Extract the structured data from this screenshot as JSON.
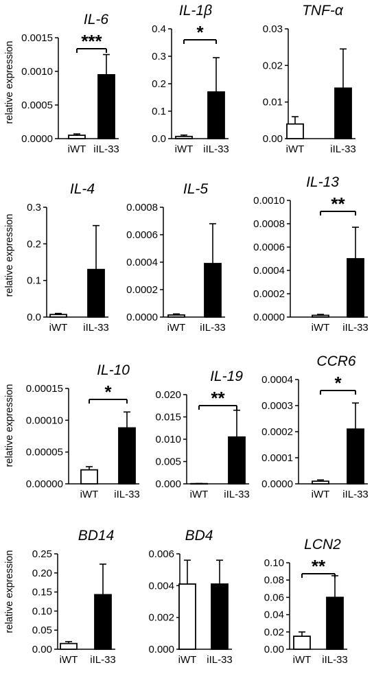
{
  "y_axis_label": "relative expression",
  "chart_data": [
    {
      "type": "bar",
      "title": "IL-6",
      "categories": [
        "iWT",
        "iIL-33"
      ],
      "values": [
        5e-05,
        0.00095
      ],
      "errors": [
        2e-05,
        0.0003
      ],
      "ylim": [
        0,
        0.0015
      ],
      "ticks": [
        "0.0000",
        "0.0005",
        "0.0010",
        "0.0015"
      ],
      "significance": "***",
      "ylabel": "relative expression"
    },
    {
      "type": "bar",
      "title": "IL-1β",
      "categories": [
        "iWT",
        "iIL-33"
      ],
      "values": [
        0.008,
        0.17
      ],
      "errors": [
        0.005,
        0.125
      ],
      "ylim": [
        0,
        0.4
      ],
      "ticks": [
        "0.0",
        "0.1",
        "0.2",
        "0.3",
        "0.4"
      ],
      "significance": "*"
    },
    {
      "type": "bar",
      "title": "TNF-α",
      "categories": [
        "iWT",
        "iIL-33"
      ],
      "values": [
        0.004,
        0.0138
      ],
      "errors": [
        0.002,
        0.0107
      ],
      "ylim": [
        0,
        0.03
      ],
      "ticks": [
        "0.00",
        "0.01",
        "0.02",
        "0.03"
      ],
      "significance": ""
    },
    {
      "type": "bar",
      "title": "IL-4",
      "categories": [
        "iWT",
        "iIL-33"
      ],
      "values": [
        0.007,
        0.13
      ],
      "errors": [
        0.003,
        0.12
      ],
      "ylim": [
        0,
        0.3
      ],
      "ticks": [
        "0.0",
        "0.1",
        "0.2",
        "0.3"
      ],
      "significance": "",
      "ylabel": "relative expression"
    },
    {
      "type": "bar",
      "title": "IL-5",
      "categories": [
        "iWT",
        "iIL-33"
      ],
      "values": [
        1.5e-05,
        0.00039
      ],
      "errors": [
        8e-06,
        0.00029
      ],
      "ylim": [
        0,
        0.0008
      ],
      "ticks": [
        "0.0000",
        "0.0002",
        "0.0004",
        "0.0006",
        "0.0008"
      ],
      "significance": ""
    },
    {
      "type": "bar",
      "title": "IL-13",
      "categories": [
        "iWT",
        "iIL-33"
      ],
      "values": [
        1.5e-05,
        0.0005
      ],
      "errors": [
        8e-06,
        0.00027
      ],
      "ylim": [
        0,
        0.001
      ],
      "ticks": [
        "0.0000",
        "0.0002",
        "0.0004",
        "0.0006",
        "0.0008",
        "0.0010"
      ],
      "significance": "**"
    },
    {
      "type": "bar",
      "title": "IL-10",
      "categories": [
        "iWT",
        "iIL-33"
      ],
      "values": [
        2.2e-05,
        8.8e-05
      ],
      "errors": [
        5e-06,
        2.5e-05
      ],
      "ylim": [
        0,
        0.00015
      ],
      "ticks": [
        "0.00000",
        "0.00005",
        "0.00010",
        "0.00015"
      ],
      "significance": "*",
      "ylabel": "relative expression"
    },
    {
      "type": "bar",
      "title": "IL-19",
      "categories": [
        "iWT",
        "iIL-33"
      ],
      "values": [
        5e-05,
        0.0105
      ],
      "errors": [
        3e-05,
        0.006
      ],
      "ylim": [
        0,
        0.02
      ],
      "ticks": [
        "0.000",
        "0.005",
        "0.010",
        "0.015",
        "0.020"
      ],
      "significance": "**"
    },
    {
      "type": "bar",
      "title": "CCR6",
      "categories": [
        "iWT",
        "iIL-33"
      ],
      "values": [
        1e-05,
        0.00021
      ],
      "errors": [
        5e-06,
        0.0001
      ],
      "ylim": [
        0,
        0.0004
      ],
      "ticks": [
        "0.0000",
        "0.0001",
        "0.0002",
        "0.0003",
        "0.0004"
      ],
      "significance": "*"
    },
    {
      "type": "bar",
      "title": "BD14",
      "categories": [
        "iWT",
        "iIL-33"
      ],
      "values": [
        0.015,
        0.143
      ],
      "errors": [
        0.005,
        0.08
      ],
      "ylim": [
        0,
        0.25
      ],
      "ticks": [
        "0.00",
        "0.05",
        "0.10",
        "0.15",
        "0.20",
        "0.25"
      ],
      "significance": "",
      "ylabel": "relative expression"
    },
    {
      "type": "bar",
      "title": "BD4",
      "categories": [
        "iWT",
        "iIL-33"
      ],
      "values": [
        0.0041,
        0.0041
      ],
      "errors": [
        0.0015,
        0.0015
      ],
      "ylim": [
        0,
        0.006
      ],
      "ticks": [
        "0.000",
        "0.002",
        "0.004",
        "0.006"
      ],
      "significance": ""
    },
    {
      "type": "bar",
      "title": "LCN2",
      "categories": [
        "iWT",
        "iIL-33"
      ],
      "values": [
        0.015,
        0.06
      ],
      "errors": [
        0.005,
        0.025
      ],
      "ylim": [
        0,
        0.1
      ],
      "ticks": [
        "0.00",
        "0.02",
        "0.04",
        "0.06",
        "0.08",
        "0.10"
      ],
      "significance": "**"
    }
  ]
}
